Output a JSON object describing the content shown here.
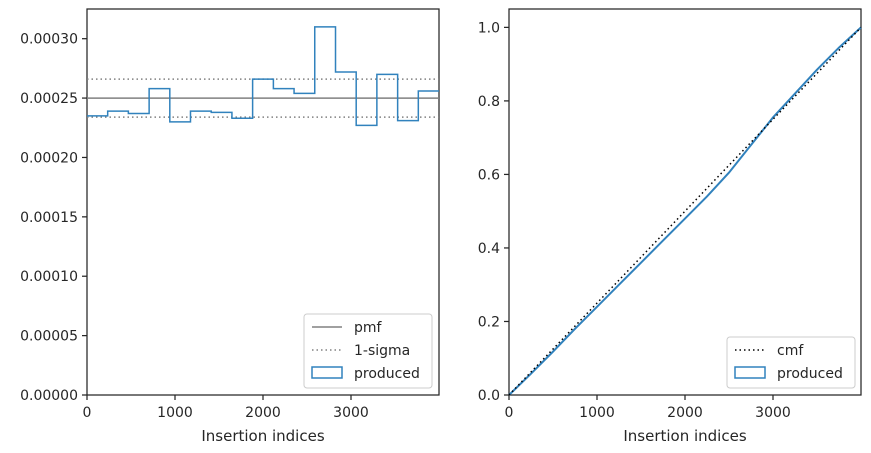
{
  "chart_data": [
    {
      "type": "step",
      "xlabel": "Insertion indices",
      "ylabel": "",
      "xlim": [
        0,
        4000
      ],
      "ylim": [
        0,
        0.000325
      ],
      "xticks": [
        "0",
        "1000",
        "2000",
        "3000"
      ],
      "yticks": [
        "0.00000",
        "0.00005",
        "0.00010",
        "0.00015",
        "0.00020",
        "0.00025",
        "0.00030"
      ],
      "grid": false,
      "legend_placement": "bottom-right",
      "pmf": {
        "name": "pmf",
        "value": 0.00025,
        "color": "#808080"
      },
      "sigma": {
        "name": "1-sigma",
        "values": [
          0.000234,
          0.000266
        ],
        "color": "#808080"
      },
      "series": [
        {
          "name": "produced",
          "color": "#3182bd",
          "bin_edges": [
            0,
            235,
            470,
            706,
            941,
            1176,
            1412,
            1647,
            1882,
            2118,
            2353,
            2588,
            2824,
            3059,
            3294,
            3530,
            3765,
            4000
          ],
          "values": [
            0.000235,
            0.000239,
            0.000237,
            0.000258,
            0.00023,
            0.000239,
            0.000238,
            0.000233,
            0.000266,
            0.000258,
            0.000254,
            0.00031,
            0.000272,
            0.000227,
            0.00027,
            0.000231,
            0.000256
          ]
        }
      ]
    },
    {
      "type": "line",
      "xlabel": "Insertion indices",
      "ylabel": "",
      "xlim": [
        0,
        4000
      ],
      "ylim": [
        0,
        1.05
      ],
      "xticks": [
        "0",
        "1000",
        "2000",
        "3000"
      ],
      "yticks": [
        "0.0",
        "0.2",
        "0.4",
        "0.6",
        "0.8",
        "1.0"
      ],
      "grid": false,
      "legend_placement": "bottom-right",
      "series": [
        {
          "name": "cmf",
          "style": "dotted",
          "color": "#000000",
          "x": [
            0,
            4000
          ],
          "y": [
            0,
            1.0
          ]
        },
        {
          "name": "produced",
          "style": "solid",
          "color": "#3182bd",
          "x": [
            0,
            250,
            500,
            750,
            1000,
            1250,
            1500,
            1750,
            2000,
            2250,
            2500,
            2750,
            3000,
            3250,
            3500,
            3750,
            4000
          ],
          "y": [
            0,
            0.058,
            0.118,
            0.18,
            0.24,
            0.3,
            0.36,
            0.42,
            0.48,
            0.54,
            0.605,
            0.68,
            0.755,
            0.82,
            0.885,
            0.945,
            1.0
          ]
        }
      ]
    }
  ]
}
